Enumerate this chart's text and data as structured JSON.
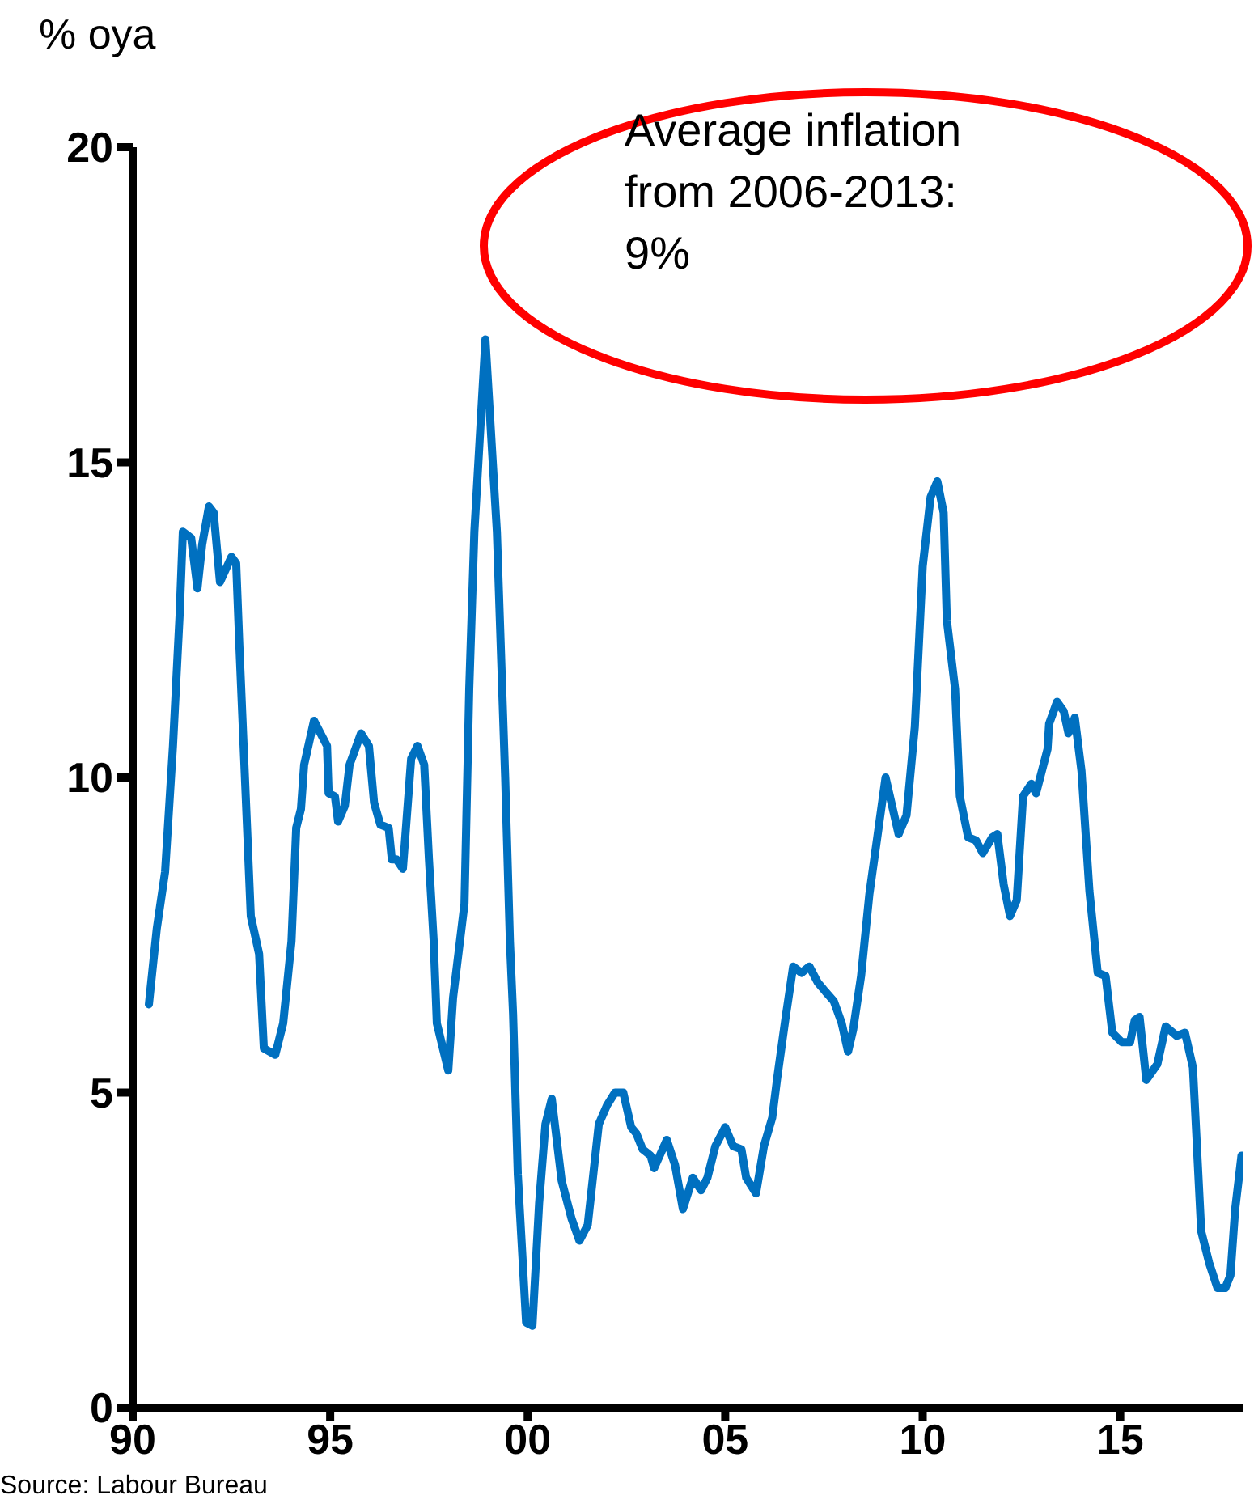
{
  "chart_data": {
    "type": "line",
    "ylabel": "% oya",
    "annotations": [
      "Average inflation\nfrom 2006-2013:\n9%",
      "Source: Labour Bureau"
    ],
    "x": [
      1990.41,
      1990.61,
      1990.82,
      1991.02,
      1991.19,
      1991.27,
      1991.48,
      1991.64,
      1991.76,
      1991.93,
      1992.05,
      1992.21,
      1992.5,
      1992.62,
      1992.7,
      1992.99,
      1993.2,
      1993.32,
      1993.61,
      1993.81,
      1994.02,
      1994.14,
      1994.26,
      1994.34,
      1994.59,
      1994.92,
      1994.96,
      1995.12,
      1995.2,
      1995.37,
      1995.49,
      1995.78,
      1995.98,
      1996.11,
      1996.27,
      1996.48,
      1996.56,
      1996.68,
      1996.84,
      1997.05,
      1997.21,
      1997.38,
      1997.5,
      1997.62,
      1997.7,
      1997.99,
      1998.11,
      1998.4,
      1998.52,
      1998.65,
      1998.93,
      1999.22,
      1999.43,
      1999.55,
      1999.63,
      1999.75,
      1999.96,
      2000.12,
      2000.29,
      2000.45,
      2000.61,
      2000.86,
      2001.11,
      2001.31,
      2001.52,
      2001.8,
      2002.01,
      2002.21,
      2002.42,
      2002.62,
      2002.75,
      2002.91,
      2003.11,
      2003.2,
      2003.52,
      2003.73,
      2003.93,
      2004.18,
      2004.39,
      2004.55,
      2004.75,
      2005.0,
      2005.2,
      2005.41,
      2005.53,
      2005.78,
      2005.98,
      2006.19,
      2006.31,
      2006.52,
      2006.72,
      2006.93,
      2007.13,
      2007.34,
      2007.54,
      2007.75,
      2007.95,
      2008.11,
      2008.24,
      2008.44,
      2008.65,
      2008.85,
      2009.06,
      2009.39,
      2009.59,
      2009.8,
      2010.0,
      2010.2,
      2010.37,
      2010.53,
      2010.61,
      2010.82,
      2010.94,
      2011.15,
      2011.35,
      2011.52,
      2011.76,
      2011.89,
      2012.05,
      2012.21,
      2012.38,
      2012.54,
      2012.75,
      2012.87,
      2013.16,
      2013.2,
      2013.4,
      2013.57,
      2013.69,
      2013.85,
      2014.02,
      2014.22,
      2014.43,
      2014.63,
      2014.8,
      2015.04,
      2015.25,
      2015.37,
      2015.49,
      2015.66,
      2015.94,
      2016.15,
      2016.43,
      2016.64,
      2016.84,
      2017.05,
      2017.25,
      2017.46,
      2017.66,
      2017.79,
      2017.91,
      2018.07
    ],
    "values": [
      6.4,
      7.6,
      8.5,
      10.5,
      12.6,
      13.9,
      13.8,
      13.0,
      13.7,
      14.3,
      14.2,
      13.1,
      13.5,
      13.4,
      12.1,
      7.8,
      7.2,
      5.7,
      5.6,
      6.1,
      7.4,
      9.2,
      9.5,
      10.2,
      10.9,
      10.5,
      9.75,
      9.7,
      9.3,
      9.55,
      10.2,
      10.7,
      10.5,
      9.6,
      9.25,
      9.2,
      8.7,
      8.7,
      8.55,
      10.3,
      10.5,
      10.2,
      8.7,
      7.4,
      6.1,
      5.35,
      6.5,
      8.0,
      11.4,
      13.9,
      16.95,
      13.9,
      10.0,
      7.4,
      6.25,
      3.7,
      1.35,
      1.3,
      3.25,
      4.5,
      4.9,
      3.6,
      3.0,
      2.65,
      2.9,
      4.5,
      4.8,
      5.0,
      5.0,
      4.45,
      4.35,
      4.1,
      4.0,
      3.8,
      4.25,
      3.85,
      3.15,
      3.65,
      3.45,
      3.65,
      4.15,
      4.45,
      4.15,
      4.1,
      3.65,
      3.4,
      4.15,
      4.6,
      5.2,
      6.15,
      7.0,
      6.9,
      7.0,
      6.75,
      6.6,
      6.45,
      6.1,
      5.65,
      6.0,
      6.85,
      8.15,
      9.05,
      10.0,
      9.1,
      9.4,
      10.8,
      13.35,
      14.45,
      14.7,
      14.2,
      12.5,
      11.4,
      9.7,
      9.05,
      9.0,
      8.8,
      9.05,
      9.1,
      8.3,
      7.8,
      8.05,
      9.7,
      9.9,
      9.75,
      10.45,
      10.85,
      11.2,
      11.05,
      10.7,
      10.95,
      10.1,
      8.2,
      6.9,
      6.85,
      5.95,
      5.8,
      5.8,
      6.15,
      6.2,
      5.2,
      5.45,
      6.05,
      5.9,
      5.95,
      5.4,
      2.8,
      2.3,
      1.9,
      1.9,
      2.1,
      3.15,
      4.0
    ],
    "color": "#0070c0",
    "xlim": [
      1990,
      2018.1
    ],
    "xticks": [
      {
        "value": 1990,
        "label": "90"
      },
      {
        "value": 1995,
        "label": "95"
      },
      {
        "value": 2000,
        "label": "00"
      },
      {
        "value": 2005,
        "label": "05"
      },
      {
        "value": 2010,
        "label": "10"
      },
      {
        "value": 2015,
        "label": "15"
      }
    ],
    "ylim": [
      0,
      20
    ],
    "yticks": [
      0,
      5,
      10,
      15,
      20
    ]
  }
}
